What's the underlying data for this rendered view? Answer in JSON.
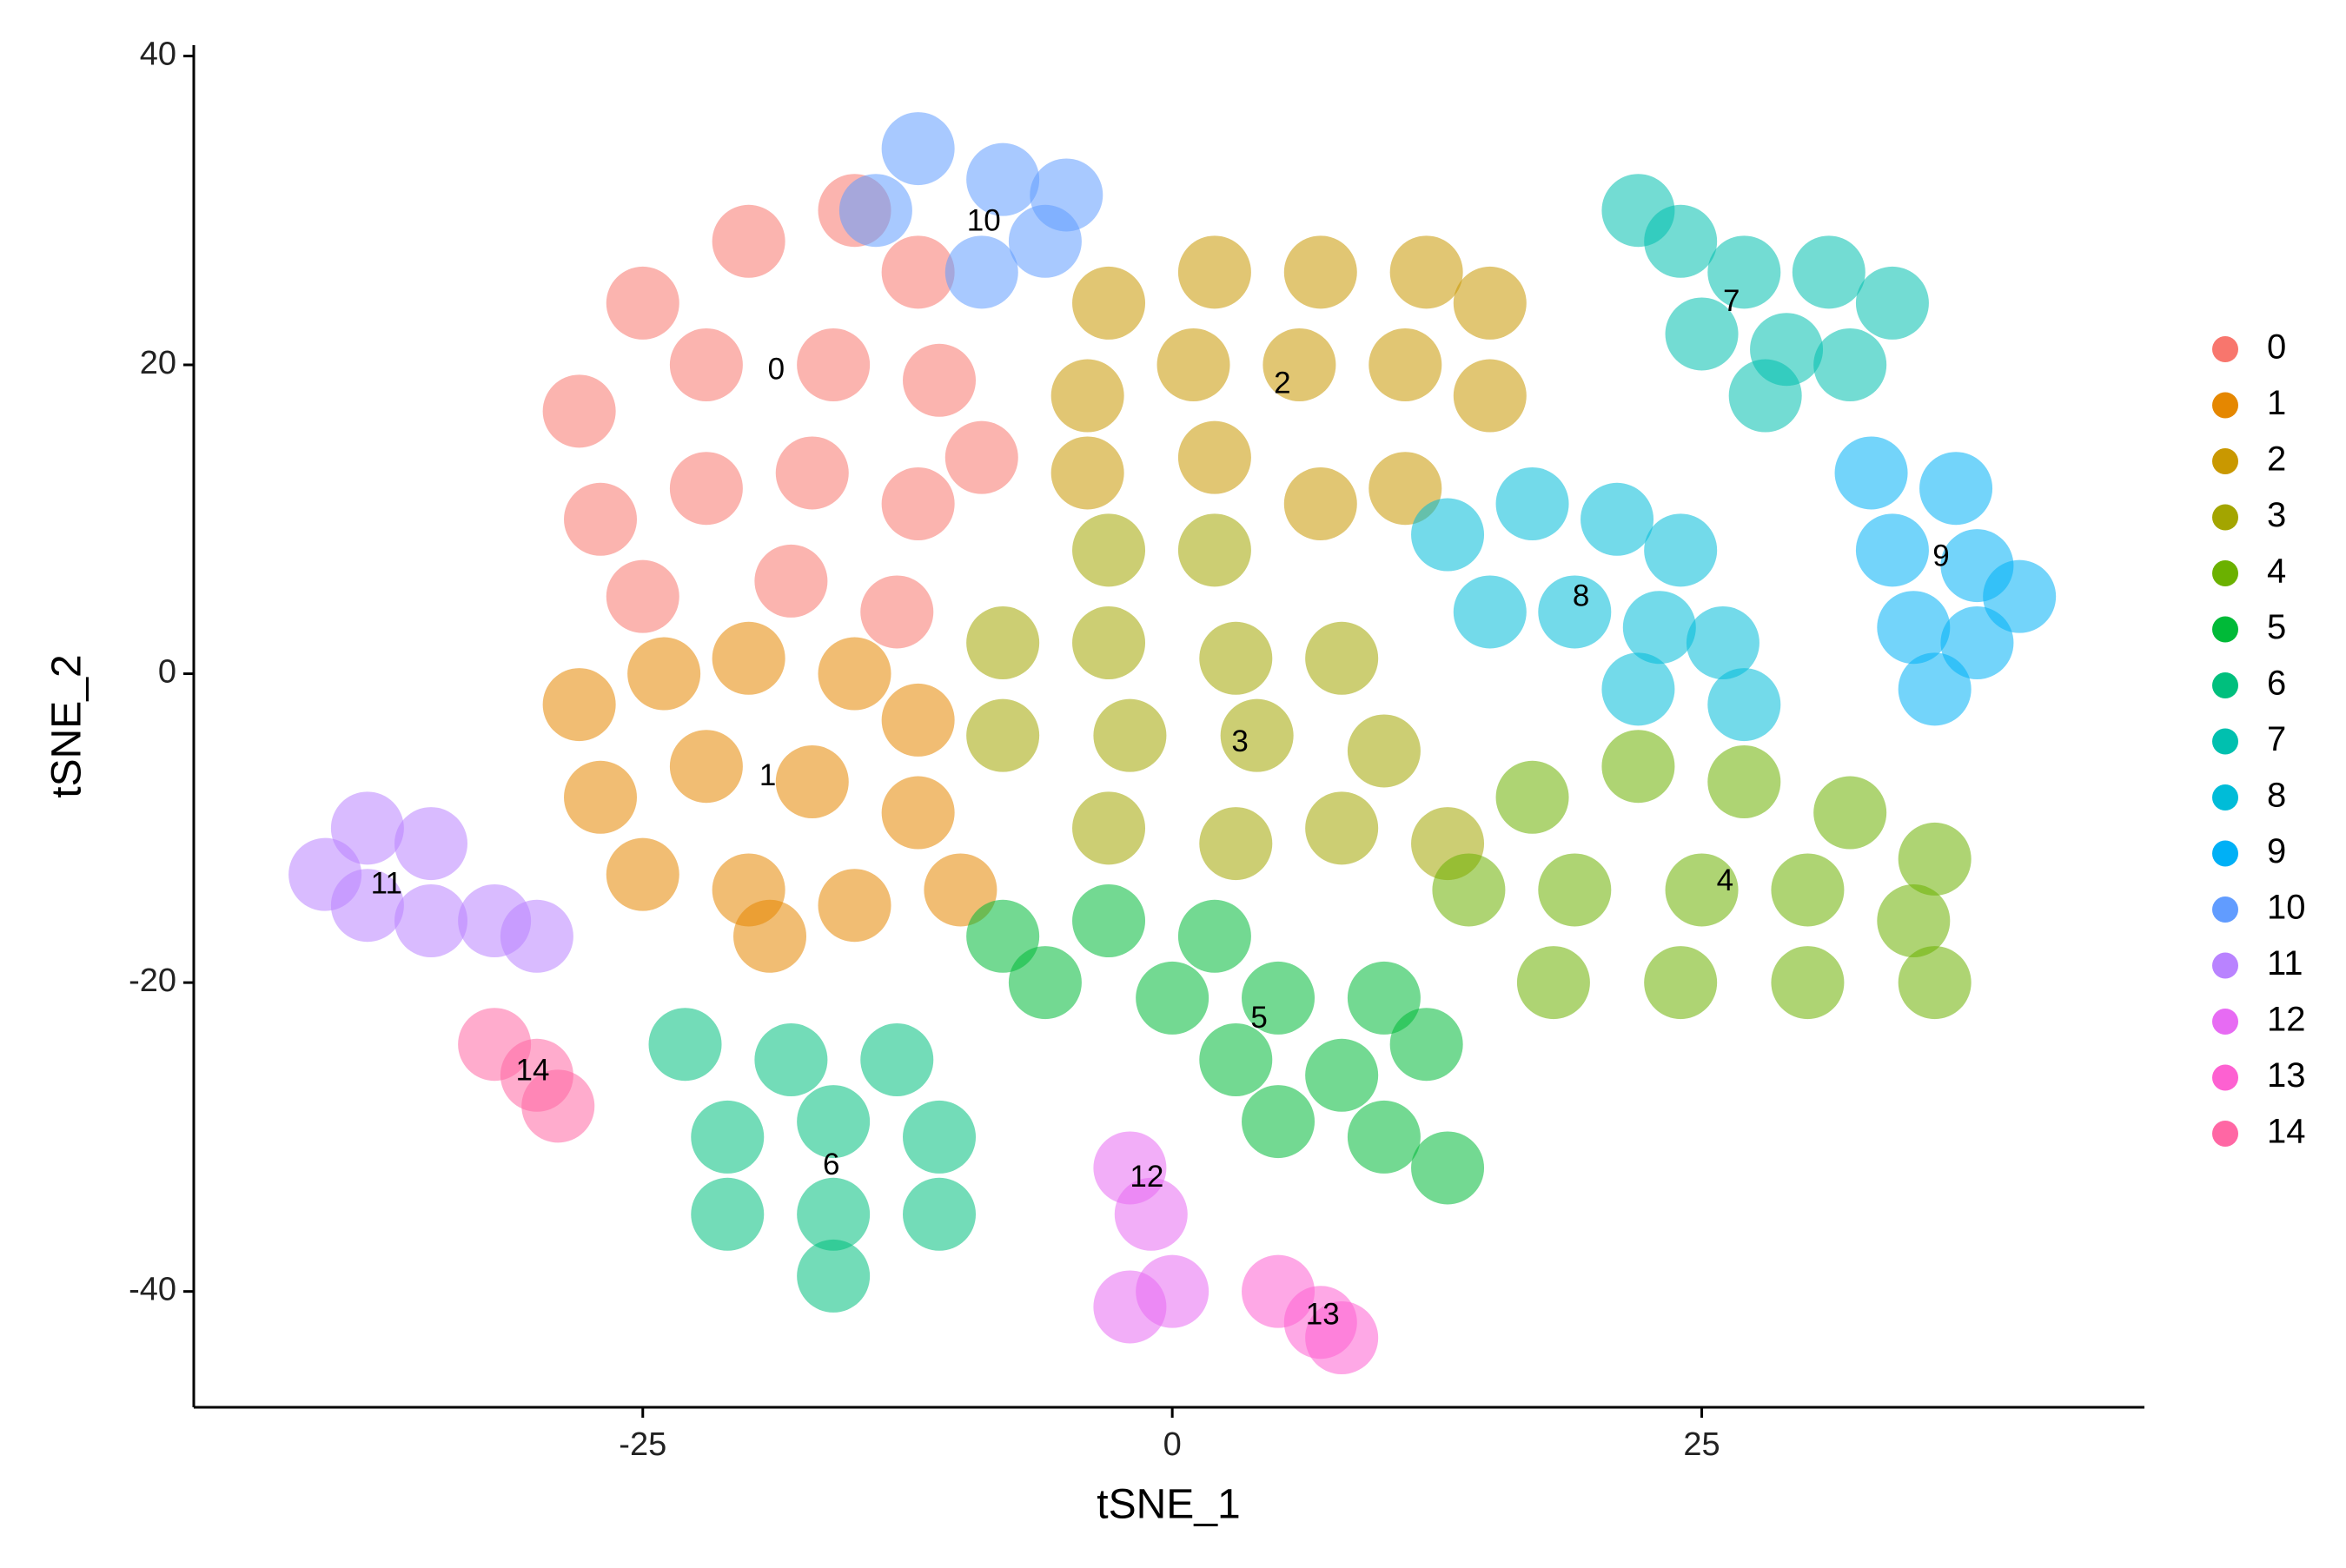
{
  "chart_data": {
    "type": "scatter",
    "x_label": "tSNE_1",
    "y_label": "tSNE_2",
    "xlim": [
      -46.2,
      45.9
    ],
    "ylim": [
      -47.5,
      40.7
    ],
    "xticks": [
      -25,
      0,
      25
    ],
    "yticks": [
      40,
      20,
      0,
      -20,
      -40
    ],
    "grid": false,
    "legend": "right",
    "series": [
      {
        "name": "0",
        "color": "#F8766D",
        "label_x": -18.7,
        "label_y": 19.6,
        "x": [
          -28,
          -25,
          -20,
          -15,
          -12,
          -22,
          -16,
          -11,
          -27,
          -22,
          -17,
          -12,
          -25,
          -18,
          -13,
          -9
        ],
        "y": [
          17,
          24,
          28,
          30,
          26,
          20,
          20,
          19,
          10,
          12,
          13,
          11,
          5,
          6,
          4,
          14
        ]
      },
      {
        "name": "1",
        "color": "#E58700",
        "label_x": -19.1,
        "label_y": -6.7,
        "x": [
          -28,
          -24,
          -20,
          -15,
          -12,
          -27,
          -22,
          -17,
          -12,
          -25,
          -20,
          -15,
          -10,
          -19
        ],
        "y": [
          -2,
          0,
          1,
          0,
          -3,
          -8,
          -6,
          -7,
          -9,
          -13,
          -14,
          -15,
          -14,
          -17
        ]
      },
      {
        "name": "2",
        "color": "#C99800",
        "label_x": 5.2,
        "label_y": 18.7,
        "x": [
          -3,
          2,
          7,
          12,
          15,
          -4,
          1,
          6,
          11,
          15,
          -4,
          2,
          7,
          11
        ],
        "y": [
          24,
          26,
          26,
          26,
          24,
          18,
          20,
          20,
          20,
          18,
          13,
          14,
          11,
          12
        ]
      },
      {
        "name": "3",
        "color": "#A3A500",
        "label_x": 3.2,
        "label_y": -4.5,
        "x": [
          -3,
          2,
          -8,
          -3,
          3,
          8,
          -8,
          -2,
          4,
          10,
          -3,
          3,
          8,
          13
        ],
        "y": [
          8,
          8,
          2,
          2,
          1,
          1,
          -4,
          -4,
          -4,
          -5,
          -10,
          -11,
          -10,
          -11
        ]
      },
      {
        "name": "4",
        "color": "#6BB100",
        "label_x": 26.1,
        "label_y": -13.5,
        "x": [
          17,
          22,
          27,
          32,
          36,
          14,
          19,
          25,
          30,
          35,
          18,
          24,
          30,
          36
        ],
        "y": [
          -8,
          -6,
          -7,
          -9,
          -12,
          -14,
          -14,
          -14,
          -14,
          -16,
          -20,
          -20,
          -20,
          -20
        ]
      },
      {
        "name": "5",
        "color": "#00BA38",
        "label_x": 4.1,
        "label_y": -22.4,
        "x": [
          -8,
          -3,
          2,
          -6,
          0,
          5,
          10,
          3,
          8,
          12,
          5,
          10,
          13
        ],
        "y": [
          -17,
          -16,
          -17,
          -20,
          -21,
          -21,
          -21,
          -25,
          -26,
          -24,
          -29,
          -30,
          -32
        ]
      },
      {
        "name": "6",
        "color": "#00BF7D",
        "label_x": -16.1,
        "label_y": -31.9,
        "x": [
          -23,
          -18,
          -13,
          -21,
          -16,
          -11,
          -21,
          -16,
          -11,
          -16
        ],
        "y": [
          -24,
          -25,
          -25,
          -30,
          -29,
          -30,
          -35,
          -35,
          -35,
          -39
        ]
      },
      {
        "name": "7",
        "color": "#00C0AF",
        "label_x": 26.4,
        "label_y": 24.0,
        "x": [
          22,
          24,
          27,
          31,
          34,
          25,
          29,
          32,
          28
        ],
        "y": [
          30,
          28,
          26,
          26,
          24,
          22,
          21,
          20,
          18
        ]
      },
      {
        "name": "8",
        "color": "#00BCD8",
        "label_x": 19.3,
        "label_y": 4.9,
        "x": [
          13,
          17,
          21,
          24,
          15,
          19,
          23,
          26,
          22,
          27
        ],
        "y": [
          9,
          11,
          10,
          8,
          4,
          4,
          3,
          2,
          -1,
          -2
        ]
      },
      {
        "name": "9",
        "color": "#00B0F6",
        "label_x": 36.3,
        "label_y": 7.5,
        "x": [
          33,
          37,
          34,
          38,
          40,
          35,
          38,
          36
        ],
        "y": [
          13,
          12,
          8,
          7,
          5,
          3,
          2,
          -1
        ]
      },
      {
        "name": "10",
        "color": "#619CFF",
        "label_x": -8.9,
        "label_y": 29.2,
        "x": [
          -12,
          -8,
          -5,
          -9,
          -6,
          -14
        ],
        "y": [
          34,
          32,
          31,
          26,
          28,
          30
        ]
      },
      {
        "name": "11",
        "color": "#B983FF",
        "label_x": -37.1,
        "label_y": -13.7,
        "x": [
          -40,
          -38,
          -35,
          -38,
          -35,
          -32,
          -30
        ],
        "y": [
          -13,
          -10,
          -11,
          -15,
          -16,
          -16,
          -17
        ]
      },
      {
        "name": "12",
        "color": "#E76BF3",
        "label_x": -1.2,
        "label_y": -32.7,
        "x": [
          -2,
          -1,
          0,
          -2
        ],
        "y": [
          -32,
          -35,
          -40,
          -41
        ]
      },
      {
        "name": "13",
        "color": "#FD61D1",
        "label_x": 7.1,
        "label_y": -41.6,
        "x": [
          5,
          7,
          8
        ],
        "y": [
          -40,
          -42,
          -43
        ]
      },
      {
        "name": "14",
        "color": "#FF67A4",
        "label_x": -30.2,
        "label_y": -25.8,
        "x": [
          -32,
          -30,
          -29
        ],
        "y": [
          -24,
          -26,
          -28
        ]
      }
    ]
  }
}
